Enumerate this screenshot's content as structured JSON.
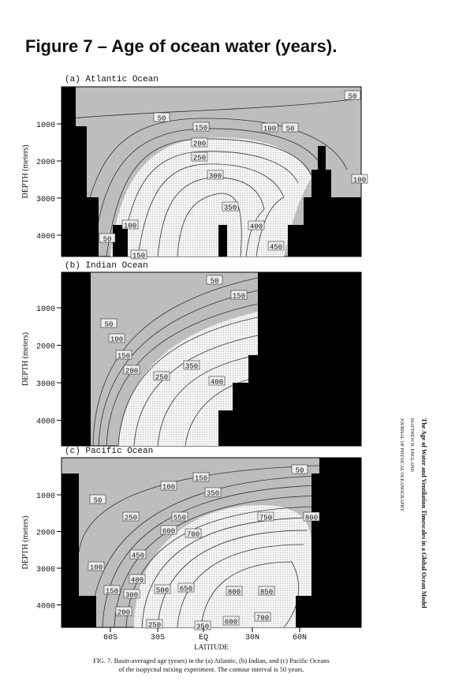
{
  "title": "Figure 7 – Age of ocean water (years).",
  "panels": [
    {
      "label": "(a) Atlantic Ocean",
      "y_axis_label": "DEPTH (meters)",
      "y_ticks": [
        "1000",
        "2000",
        "3000",
        "4000"
      ],
      "contour_labels": [
        "50",
        "50",
        "150",
        "100",
        "50",
        "200",
        "250",
        "300",
        "100",
        "350",
        "400",
        "450",
        "50",
        "100",
        "150"
      ]
    },
    {
      "label": "(b) Indian Ocean",
      "y_axis_label": "DEPTH (meters)",
      "y_ticks": [
        "1000",
        "2000",
        "3000",
        "4000"
      ],
      "contour_labels": [
        "50",
        "150",
        "50",
        "100",
        "150",
        "200",
        "250",
        "350",
        "400"
      ]
    },
    {
      "label": "(c) Pacific Ocean",
      "y_axis_label": "DEPTH (meters)",
      "y_ticks": [
        "1000",
        "2000",
        "3000",
        "4000"
      ],
      "contour_labels": [
        "50",
        "150",
        "100",
        "350",
        "50",
        "250",
        "550",
        "600",
        "700",
        "750",
        "800",
        "450",
        "100",
        "400",
        "150",
        "300",
        "500",
        "650",
        "800",
        "850",
        "200",
        "250",
        "350",
        "600",
        "700"
      ]
    }
  ],
  "x_axis": {
    "ticks": [
      "60S",
      "30S",
      "EQ",
      "30N",
      "60N"
    ],
    "label": "LATITUDE"
  },
  "caption": [
    "FIG. 7. Basin-averaged age (years) in the (a) Atlantic, (b) Indian, and (c) Pacific Oceans",
    "of the isopycnal mixing experiment. The contour interval is 50 years."
  ],
  "side_text": [
    "The Age of Water and Ventilation Timescales in a Global Ocean Model",
    "MATTHEW H. ENGLAND",
    "JOURNAL OF PHYSICAL OCEANOGRAPHY"
  ]
}
